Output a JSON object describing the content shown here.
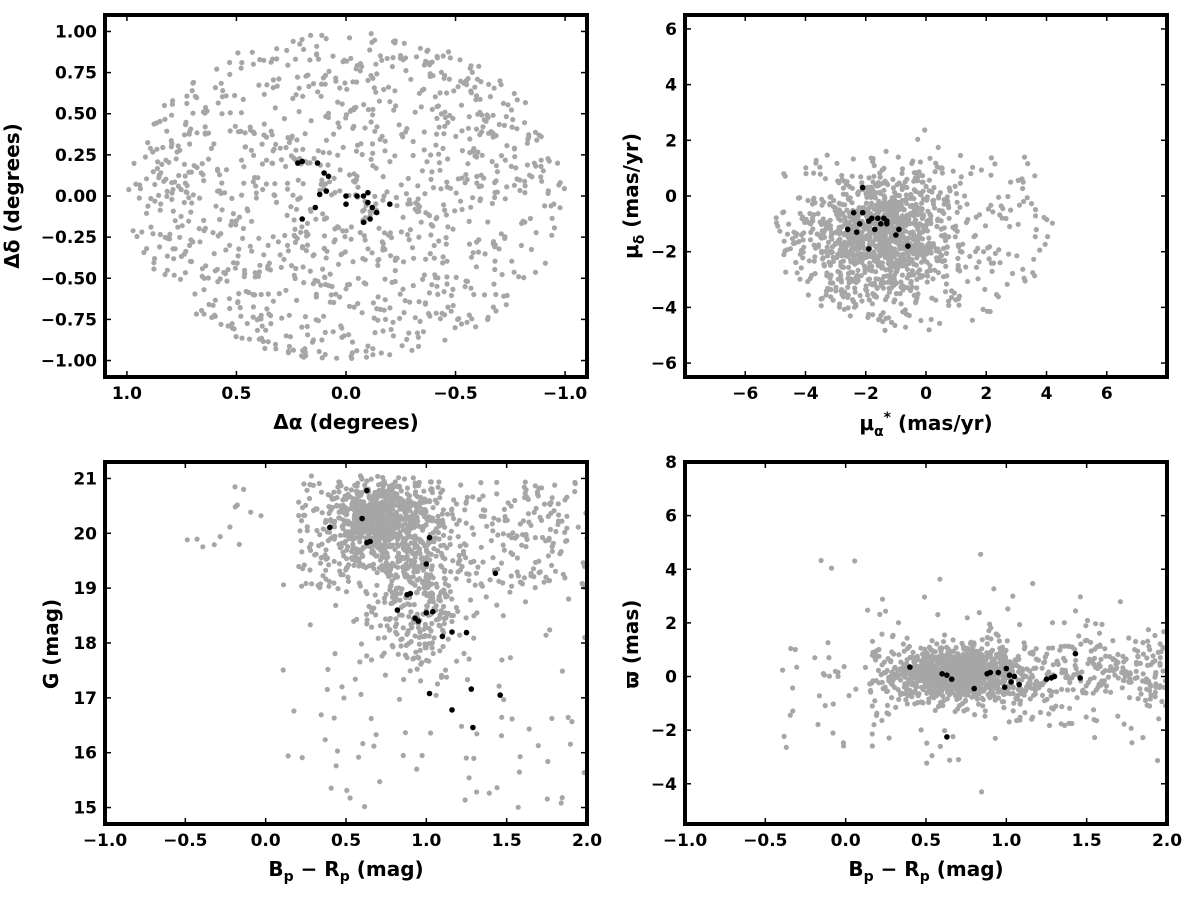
{
  "colors": {
    "field": "#a6a6a6",
    "members": "#000000",
    "axes": "#000000"
  },
  "chart_data": [
    {
      "type": "scatter",
      "xlabel": "Δα (degrees)",
      "ylabel": "Δδ (degrees)",
      "xlim": [
        1.1,
        -1.1
      ],
      "ylim": [
        -1.1,
        1.1
      ],
      "xticks": [
        1.0,
        0.5,
        0.0,
        -0.5,
        -1.0
      ],
      "yticks": [
        1.0,
        0.75,
        0.5,
        0.25,
        0.0,
        -0.25,
        -0.5,
        -0.75,
        -1.0
      ],
      "xtick_labels": [
        "1.0",
        "0.5",
        "0.0",
        "−0.5",
        "−1.0"
      ],
      "ytick_labels": [
        "1.00",
        "0.75",
        "0.50",
        "0.25",
        "0.00",
        "−0.25",
        "−0.50",
        "−0.75",
        "−1.00"
      ],
      "field_distribution": {
        "shape": "uniform disk",
        "center": [
          0,
          0
        ],
        "radius": 1.0,
        "n": 1100
      },
      "members": [
        [
          0.2,
          0.21
        ],
        [
          0.22,
          0.2
        ],
        [
          0.13,
          0.2
        ],
        [
          0.1,
          0.14
        ],
        [
          0.08,
          0.12
        ],
        [
          0.09,
          0.03
        ],
        [
          0.12,
          0.01
        ],
        [
          0.2,
          -0.14
        ],
        [
          0.14,
          -0.07
        ],
        [
          0.0,
          0.0
        ],
        [
          -0.05,
          0.0
        ],
        [
          -0.08,
          0.0
        ],
        [
          -0.1,
          0.02
        ],
        [
          0.0,
          -0.05
        ],
        [
          -0.1,
          -0.04
        ],
        [
          -0.12,
          -0.07
        ],
        [
          -0.14,
          -0.1
        ],
        [
          -0.11,
          -0.14
        ],
        [
          -0.08,
          -0.16
        ],
        [
          -0.2,
          -0.05
        ]
      ]
    },
    {
      "type": "scatter",
      "xlabel": "μ*α (mas/yr)",
      "ylabel": "μδ (mas/yr)",
      "xlim": [
        -8,
        8
      ],
      "ylim": [
        -6.5,
        6.5
      ],
      "xticks": [
        -6,
        -4,
        -2,
        0,
        2,
        4,
        6
      ],
      "yticks": [
        6,
        4,
        2,
        0,
        -2,
        -4,
        -6
      ],
      "xtick_labels": [
        "−6",
        "−4",
        "−2",
        "0",
        "2",
        "4",
        "6"
      ],
      "ytick_labels": [
        "6",
        "4",
        "2",
        "0",
        "−2",
        "−4",
        "−6"
      ],
      "field_distribution": {
        "shape": "clump",
        "center": [
          -1.5,
          -1.5
        ],
        "spread": [
          1.6,
          1.4
        ],
        "n": 1400
      },
      "members": [
        [
          -2.1,
          0.3
        ],
        [
          -2.4,
          -0.6
        ],
        [
          -2.1,
          -0.6
        ],
        [
          -1.8,
          -0.8
        ],
        [
          -1.6,
          -0.8
        ],
        [
          -1.4,
          -0.8
        ],
        [
          -1.3,
          -0.9
        ],
        [
          -1.5,
          -1.0
        ],
        [
          -1.7,
          -1.2
        ],
        [
          -2.2,
          -1.0
        ],
        [
          -2.6,
          -1.2
        ],
        [
          -2.3,
          -1.3
        ],
        [
          -1.9,
          -1.9
        ],
        [
          -0.9,
          -1.2
        ],
        [
          -1.0,
          -1.4
        ],
        [
          -0.6,
          -1.8
        ],
        [
          -1.9,
          -0.9
        ],
        [
          -1.3,
          -1.0
        ]
      ]
    },
    {
      "type": "scatter",
      "xlabel": "Bp − Rp (mag)",
      "ylabel": "G (mag)",
      "xlim": [
        -1.0,
        2.0
      ],
      "ylim": [
        14.7,
        21.3
      ],
      "xticks": [
        -1.0,
        -0.5,
        0.0,
        0.5,
        1.0,
        1.5,
        2.0
      ],
      "yticks": [
        21,
        20,
        19,
        18,
        17,
        16,
        15
      ],
      "xtick_labels": [
        "−1.0",
        "−0.5",
        "0.0",
        "0.5",
        "1.0",
        "1.5",
        "2.0"
      ],
      "ytick_labels": [
        "21",
        "20",
        "19",
        "18",
        "17",
        "16",
        "15"
      ],
      "field_distribution": {
        "shape": "cmd",
        "n": 1500
      },
      "members": [
        [
          0.63,
          20.78
        ],
        [
          0.6,
          20.27
        ],
        [
          0.4,
          20.11
        ],
        [
          0.65,
          19.85
        ],
        [
          0.63,
          19.83
        ],
        [
          1.02,
          19.92
        ],
        [
          1.0,
          19.44
        ],
        [
          1.43,
          19.27
        ],
        [
          0.88,
          18.88
        ],
        [
          0.9,
          18.9
        ],
        [
          0.82,
          18.6
        ],
        [
          0.93,
          18.45
        ],
        [
          0.95,
          18.4
        ],
        [
          1.0,
          18.55
        ],
        [
          1.04,
          18.57
        ],
        [
          1.16,
          18.2
        ],
        [
          1.25,
          18.19
        ],
        [
          1.1,
          18.12
        ],
        [
          1.02,
          17.08
        ],
        [
          1.28,
          17.16
        ],
        [
          1.46,
          17.05
        ],
        [
          1.16,
          16.78
        ],
        [
          1.29,
          16.46
        ]
      ]
    },
    {
      "type": "scatter",
      "xlabel": "Bp − Rp (mag)",
      "ylabel": "ϖ (mas)",
      "xlim": [
        -1.0,
        2.0
      ],
      "ylim": [
        -5.5,
        8.0
      ],
      "xticks": [
        -1.0,
        -0.5,
        0.0,
        0.5,
        1.0,
        1.5,
        2.0
      ],
      "yticks": [
        8,
        6,
        4,
        2,
        0,
        -2,
        -4
      ],
      "xtick_labels": [
        "−1.0",
        "−0.5",
        "0.0",
        "0.5",
        "1.0",
        "1.5",
        "2.0"
      ],
      "ytick_labels": [
        "8",
        "6",
        "4",
        "2",
        "0",
        "−2",
        "−4"
      ],
      "field_distribution": {
        "shape": "band",
        "center_y": 0.1,
        "n": 1500
      },
      "members": [
        [
          0.4,
          0.35
        ],
        [
          0.6,
          0.1
        ],
        [
          0.63,
          0.05
        ],
        [
          0.66,
          -0.1
        ],
        [
          0.63,
          -2.25
        ],
        [
          0.8,
          -0.45
        ],
        [
          0.9,
          0.15
        ],
        [
          0.95,
          0.15
        ],
        [
          1.0,
          0.3
        ],
        [
          0.99,
          -0.4
        ],
        [
          1.05,
          0.0
        ],
        [
          1.03,
          -0.2
        ],
        [
          1.08,
          -0.3
        ],
        [
          1.25,
          -0.1
        ],
        [
          1.28,
          -0.05
        ],
        [
          1.3,
          0.0
        ],
        [
          1.43,
          0.85
        ],
        [
          1.46,
          -0.05
        ],
        [
          0.88,
          0.1
        ],
        [
          1.02,
          0.05
        ]
      ]
    }
  ]
}
